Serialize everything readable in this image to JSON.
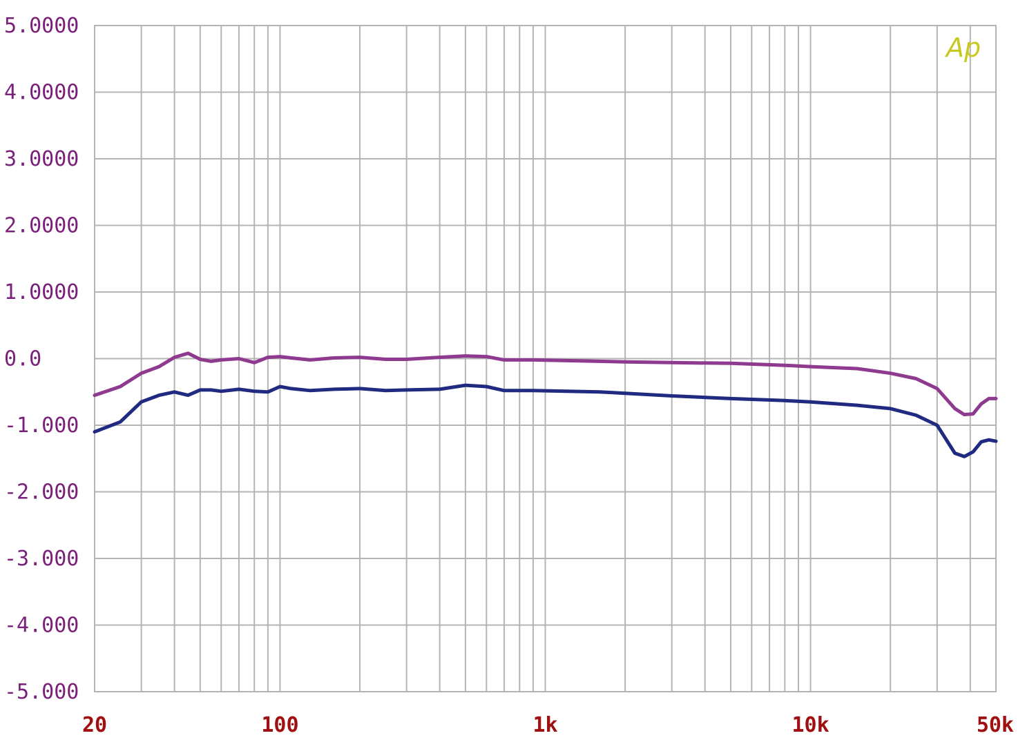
{
  "chart_data": {
    "type": "line",
    "title": "",
    "xlabel": "",
    "ylabel": "",
    "xscale": "log",
    "xlim": [
      20,
      50000
    ],
    "ylim": [
      -5,
      5
    ],
    "grid": true,
    "logo_text": "Ap",
    "y_tick_values": [
      5,
      4,
      3,
      2,
      1,
      0,
      -1,
      -2,
      -3,
      -4,
      -5
    ],
    "y_tick_labels": [
      "5.0000",
      "4.0000",
      "3.0000",
      "2.0000",
      "1.0000",
      "0.0",
      "-1.000",
      "-2.000",
      "-3.000",
      "-4.000",
      "-5.000"
    ],
    "x_tick_values": [
      20,
      100,
      1000,
      10000,
      50000
    ],
    "x_tick_labels": [
      "20",
      "100",
      "1k",
      "10k",
      "50k"
    ],
    "x_minor_grid": [
      30,
      40,
      50,
      60,
      70,
      80,
      90,
      200,
      300,
      400,
      500,
      600,
      700,
      800,
      900,
      2000,
      3000,
      4000,
      5000,
      6000,
      7000,
      8000,
      9000,
      20000,
      30000,
      40000
    ],
    "series": [
      {
        "color": "#8e3a8e",
        "x": [
          20,
          25,
          30,
          35,
          40,
          45,
          50,
          55,
          60,
          70,
          80,
          90,
          100,
          110,
          130,
          160,
          200,
          250,
          300,
          400,
          500,
          600,
          700,
          900,
          1200,
          1600,
          2000,
          3000,
          5000,
          8000,
          10000,
          15000,
          20000,
          25000,
          30000,
          35000,
          38000,
          41000,
          44000,
          47000,
          50000
        ],
        "values": [
          -0.55,
          -0.42,
          -0.22,
          -0.12,
          0.02,
          0.08,
          -0.01,
          -0.04,
          -0.02,
          0.0,
          -0.06,
          0.02,
          0.03,
          0.01,
          -0.02,
          0.01,
          0.02,
          -0.01,
          -0.01,
          0.02,
          0.04,
          0.03,
          -0.02,
          -0.02,
          -0.03,
          -0.04,
          -0.05,
          -0.06,
          -0.07,
          -0.1,
          -0.12,
          -0.15,
          -0.22,
          -0.3,
          -0.45,
          -0.75,
          -0.84,
          -0.83,
          -0.68,
          -0.6,
          -0.6
        ]
      },
      {
        "color": "#1f2a80",
        "x": [
          20,
          25,
          30,
          35,
          40,
          45,
          50,
          55,
          60,
          70,
          80,
          90,
          100,
          110,
          130,
          160,
          200,
          250,
          300,
          400,
          500,
          600,
          700,
          900,
          1200,
          1600,
          2000,
          3000,
          5000,
          8000,
          10000,
          15000,
          20000,
          25000,
          30000,
          35000,
          38000,
          41000,
          44000,
          47000,
          50000
        ],
        "values": [
          -1.1,
          -0.95,
          -0.65,
          -0.55,
          -0.5,
          -0.55,
          -0.47,
          -0.47,
          -0.49,
          -0.46,
          -0.49,
          -0.5,
          -0.42,
          -0.45,
          -0.48,
          -0.46,
          -0.45,
          -0.48,
          -0.47,
          -0.46,
          -0.4,
          -0.42,
          -0.48,
          -0.48,
          -0.49,
          -0.5,
          -0.52,
          -0.56,
          -0.6,
          -0.63,
          -0.65,
          -0.7,
          -0.75,
          -0.85,
          -1.0,
          -1.42,
          -1.47,
          -1.4,
          -1.25,
          -1.22,
          -1.24
        ]
      }
    ]
  }
}
